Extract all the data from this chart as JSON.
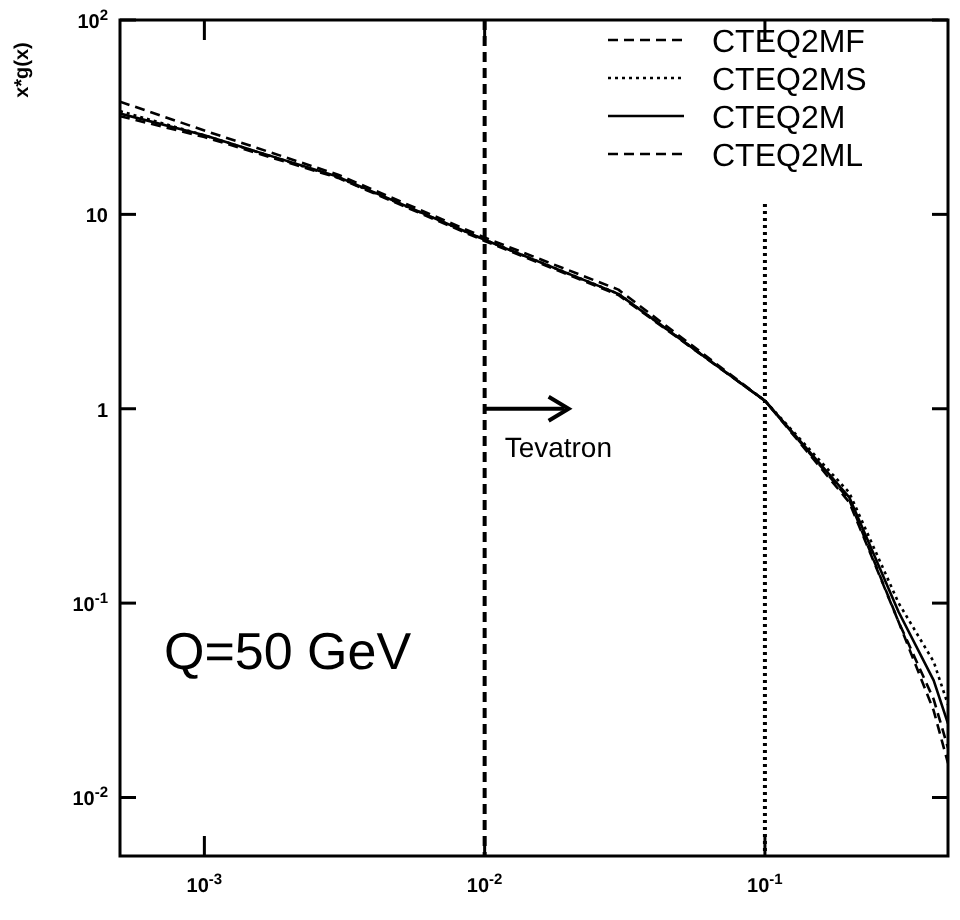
{
  "chart_data": {
    "type": "line",
    "ylabel": "x*g(x)",
    "log": "xy",
    "legend": "top right",
    "grid": false,
    "xlim": [
      0.0005,
      0.45
    ],
    "ylim": [
      0.005,
      100
    ],
    "xticks": [
      {
        "value": 0.001,
        "label": "10$^{-3}$"
      },
      {
        "value": 0.01,
        "label": "10$^{-2}$"
      },
      {
        "value": 0.1,
        "label": "10$^{-1}$"
      }
    ],
    "yticks": [
      {
        "value": 0.01,
        "label": "10$^{-2}$"
      },
      {
        "value": 0.1,
        "label": "10$^{-1}$"
      },
      1,
      10,
      {
        "value": 100,
        "label": "10$^{2}$"
      }
    ],
    "x": [
      0.0005,
      0.001,
      0.003,
      0.01,
      0.03,
      0.1,
      0.2,
      0.3,
      0.4,
      0.45
    ],
    "series": [
      {
        "name": "CTEQ2MF",
        "color": "#000000",
        "line_style": "dashed",
        "values": [
          38,
          27,
          16,
          7.6,
          4.1,
          1.1,
          0.34,
          0.08,
          0.028,
          0.015
        ]
      },
      {
        "name": "CTEQ2MS",
        "color": "#000000",
        "line_style": "dotted",
        "values": [
          34,
          25.5,
          15.5,
          7.4,
          3.9,
          1.1,
          0.37,
          0.1,
          0.05,
          0.03
        ]
      },
      {
        "name": "CTEQ2M",
        "color": "#000000",
        "line_style": "solid",
        "values": [
          33,
          25.5,
          15.6,
          7.4,
          3.9,
          1.1,
          0.35,
          0.09,
          0.04,
          0.024
        ]
      },
      {
        "name": "CTEQ2ML",
        "color": "#000000",
        "line_style": "dashed",
        "values": [
          32,
          25,
          15.4,
          7.3,
          3.85,
          1.1,
          0.33,
          0.08,
          0.032,
          0.018
        ]
      }
    ],
    "ref_lines": [
      {
        "axis": "x",
        "value": 0.01,
        "line_style": "dashed",
        "color": "#000000"
      },
      {
        "axis": "x",
        "value": 0.1,
        "line_style": "dotted",
        "color": "#000000"
      }
    ],
    "annotations": [
      "Tevatron",
      "Q=50 GeV"
    ]
  }
}
